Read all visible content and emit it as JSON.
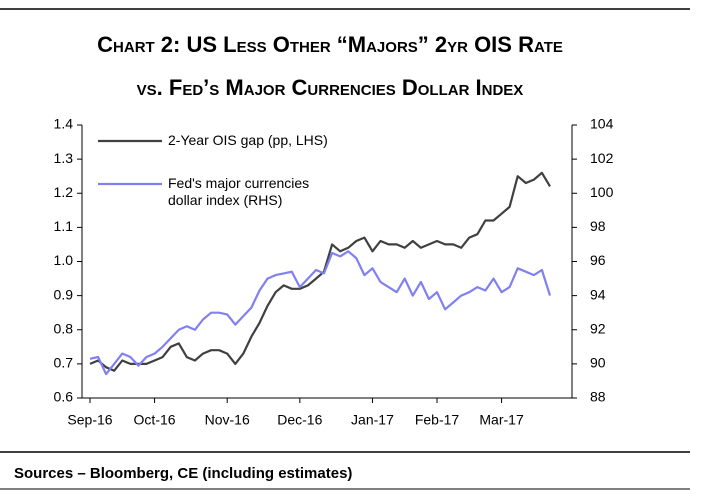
{
  "chart_data": {
    "type": "line",
    "title": "Chart 2: US Less Other “Majors” 2yr OIS Rate",
    "subtitle": "vs. Fed’s Major Currencies Dollar Index",
    "source": "Sources – Bloomberg, CE (including estimates)",
    "categories": [
      "Sep-16",
      null,
      null,
      null,
      null,
      null,
      null,
      null,
      "Oct-16",
      null,
      null,
      null,
      null,
      null,
      null,
      null,
      null,
      "Nov-16",
      null,
      null,
      null,
      null,
      null,
      null,
      null,
      null,
      "Dec-16",
      null,
      null,
      null,
      null,
      null,
      null,
      null,
      null,
      "Jan-17",
      null,
      null,
      null,
      null,
      null,
      null,
      null,
      "Feb-17",
      null,
      null,
      null,
      null,
      null,
      null,
      null,
      "Mar-17",
      null,
      null,
      null,
      null,
      null,
      null
    ],
    "series": [
      {
        "name": "2-Year OIS gap (pp, LHS)",
        "color": "#404040",
        "axis": "y",
        "values": [
          0.7,
          0.71,
          0.69,
          0.68,
          0.71,
          0.7,
          0.7,
          0.7,
          0.71,
          0.72,
          0.75,
          0.76,
          0.72,
          0.71,
          0.73,
          0.74,
          0.74,
          0.73,
          0.7,
          0.73,
          0.78,
          0.82,
          0.87,
          0.91,
          0.93,
          0.92,
          0.92,
          0.93,
          0.95,
          0.97,
          1.05,
          1.03,
          1.04,
          1.06,
          1.07,
          1.03,
          1.06,
          1.05,
          1.05,
          1.04,
          1.06,
          1.04,
          1.05,
          1.06,
          1.05,
          1.05,
          1.04,
          1.07,
          1.08,
          1.12,
          1.12,
          1.14,
          1.16,
          1.25,
          1.23,
          1.24,
          1.26,
          1.22
        ]
      },
      {
        "name": "Fed's major currencies dollar index (RHS)",
        "color": "#8080f0",
        "axis": "y2",
        "values": [
          90.3,
          90.4,
          89.4,
          90.0,
          90.6,
          90.4,
          89.9,
          90.4,
          90.6,
          91.0,
          91.5,
          92.0,
          92.2,
          92.0,
          92.6,
          93.0,
          93.0,
          92.9,
          92.3,
          92.8,
          93.3,
          94.3,
          95.0,
          95.2,
          95.3,
          95.4,
          94.5,
          95.0,
          95.5,
          95.3,
          96.5,
          96.3,
          96.6,
          96.2,
          95.2,
          95.6,
          94.8,
          94.5,
          94.2,
          95.0,
          94.0,
          94.8,
          93.8,
          94.2,
          93.2,
          93.6,
          94.0,
          94.2,
          94.5,
          94.3,
          95.0,
          94.2,
          94.5,
          95.6,
          95.4,
          95.2,
          95.5,
          94.0
        ]
      }
    ],
    "ylim": [
      0.6,
      1.4
    ],
    "yticks": [
      0.6,
      0.7,
      0.8,
      0.9,
      {
        "value": 1,
        "label": "1.0"
      },
      1.1,
      1.2,
      1.3,
      1.4
    ],
    "y2lim": [
      88,
      104
    ],
    "y2ticks": [
      88,
      90,
      92,
      94,
      96,
      98,
      100,
      102,
      104
    ],
    "legend": "upper left"
  }
}
